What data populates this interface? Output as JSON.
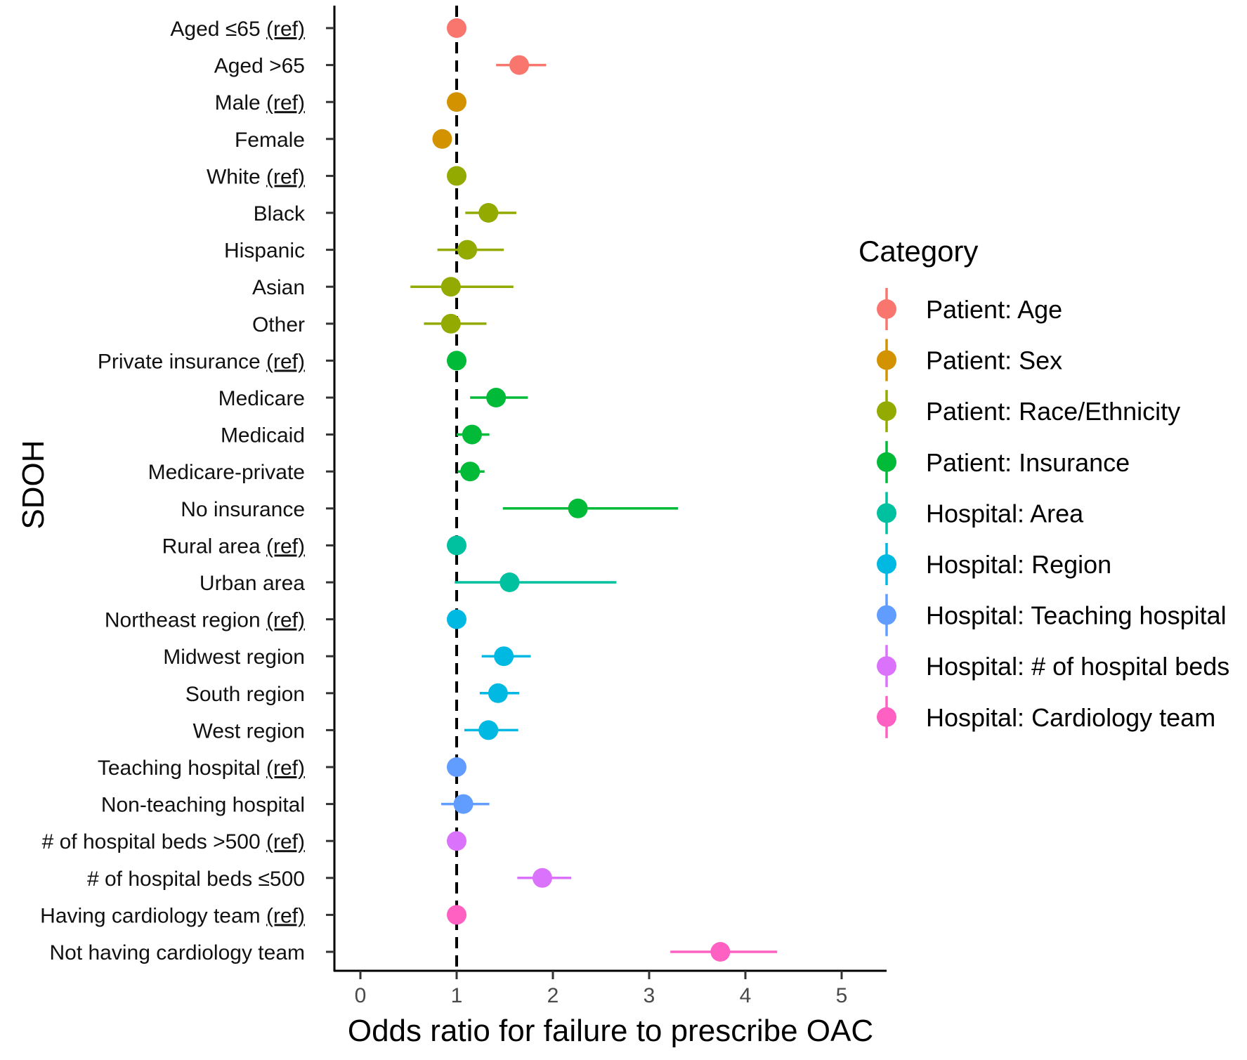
{
  "chart_data": {
    "type": "forest",
    "xlabel": "Odds ratio for failure to prescribe OAC",
    "ylabel": "SDOH",
    "xlim": [
      -0.25,
      5.45
    ],
    "xticks": [
      0,
      1,
      2,
      3,
      4,
      5
    ],
    "reference_line": 1,
    "legend_title": "Category",
    "legend_position": "right",
    "categories": [
      {
        "name": "Patient: Age",
        "color": "#F8766D"
      },
      {
        "name": "Patient: Sex",
        "color": "#D39200"
      },
      {
        "name": "Patient: Race/Ethnicity",
        "color": "#93AA00"
      },
      {
        "name": "Patient: Insurance",
        "color": "#00BA38"
      },
      {
        "name": "Hospital: Area",
        "color": "#00C19F"
      },
      {
        "name": "Hospital: Region",
        "color": "#00B9E3"
      },
      {
        "name": "Hospital: Teaching hospital",
        "color": "#619CFF"
      },
      {
        "name": "Hospital: # of hospital beds",
        "color": "#DB72FB"
      },
      {
        "name": "Hospital: Cardiology team",
        "color": "#FF61C3"
      }
    ],
    "rows": [
      {
        "label": "Aged ≤65",
        "ref": true,
        "category": 0,
        "or": 1.0,
        "lo": 1.0,
        "hi": 1.0
      },
      {
        "label": "Aged >65",
        "ref": false,
        "category": 0,
        "or": 1.65,
        "lo": 1.41,
        "hi": 1.93
      },
      {
        "label": "Male",
        "ref": true,
        "category": 1,
        "or": 1.0,
        "lo": 1.0,
        "hi": 1.0
      },
      {
        "label": "Female",
        "ref": false,
        "category": 1,
        "or": 0.85,
        "lo": 0.85,
        "hi": 0.85
      },
      {
        "label": "White",
        "ref": true,
        "category": 2,
        "or": 1.0,
        "lo": 1.0,
        "hi": 1.0
      },
      {
        "label": "Black",
        "ref": false,
        "category": 2,
        "or": 1.33,
        "lo": 1.09,
        "hi": 1.62
      },
      {
        "label": "Hispanic",
        "ref": false,
        "category": 2,
        "or": 1.11,
        "lo": 0.8,
        "hi": 1.49
      },
      {
        "label": "Asian",
        "ref": false,
        "category": 2,
        "or": 0.94,
        "lo": 0.52,
        "hi": 1.59
      },
      {
        "label": "Other",
        "ref": false,
        "category": 2,
        "or": 0.94,
        "lo": 0.66,
        "hi": 1.31
      },
      {
        "label": "Private insurance",
        "ref": true,
        "category": 3,
        "or": 1.0,
        "lo": 1.0,
        "hi": 1.0
      },
      {
        "label": "Medicare",
        "ref": false,
        "category": 3,
        "or": 1.41,
        "lo": 1.14,
        "hi": 1.74
      },
      {
        "label": "Medicaid",
        "ref": false,
        "category": 3,
        "or": 1.16,
        "lo": 1.0,
        "hi": 1.34
      },
      {
        "label": "Medicare-private",
        "ref": false,
        "category": 3,
        "or": 1.14,
        "lo": 1.01,
        "hi": 1.29
      },
      {
        "label": "No insurance",
        "ref": false,
        "category": 3,
        "or": 2.26,
        "lo": 1.48,
        "hi": 3.3
      },
      {
        "label": "Rural area",
        "ref": true,
        "category": 4,
        "or": 1.0,
        "lo": 1.0,
        "hi": 1.0
      },
      {
        "label": "Urban area",
        "ref": false,
        "category": 4,
        "or": 1.55,
        "lo": 0.98,
        "hi": 2.66
      },
      {
        "label": "Northeast region",
        "ref": true,
        "category": 5,
        "or": 1.0,
        "lo": 1.0,
        "hi": 1.0
      },
      {
        "label": "Midwest region",
        "ref": false,
        "category": 5,
        "or": 1.49,
        "lo": 1.26,
        "hi": 1.77
      },
      {
        "label": "South region",
        "ref": false,
        "category": 5,
        "or": 1.43,
        "lo": 1.24,
        "hi": 1.65
      },
      {
        "label": "West region",
        "ref": false,
        "category": 5,
        "or": 1.33,
        "lo": 1.08,
        "hi": 1.64
      },
      {
        "label": "Teaching hospital",
        "ref": true,
        "category": 6,
        "or": 1.0,
        "lo": 1.0,
        "hi": 1.0
      },
      {
        "label": "Non-teaching hospital",
        "ref": false,
        "category": 6,
        "or": 1.07,
        "lo": 0.84,
        "hi": 1.34
      },
      {
        "label": "# of hospital beds >500",
        "ref": true,
        "category": 7,
        "or": 1.0,
        "lo": 1.0,
        "hi": 1.0
      },
      {
        "label": "# of hospital beds ≤500",
        "ref": false,
        "category": 7,
        "or": 1.89,
        "lo": 1.63,
        "hi": 2.19
      },
      {
        "label": "Having cardiology team",
        "ref": true,
        "category": 8,
        "or": 1.0,
        "lo": 1.0,
        "hi": 1.0
      },
      {
        "label": "Not having cardiology team",
        "ref": false,
        "category": 8,
        "or": 3.74,
        "lo": 3.22,
        "hi": 4.33
      }
    ],
    "ref_marker": "(ref)"
  }
}
